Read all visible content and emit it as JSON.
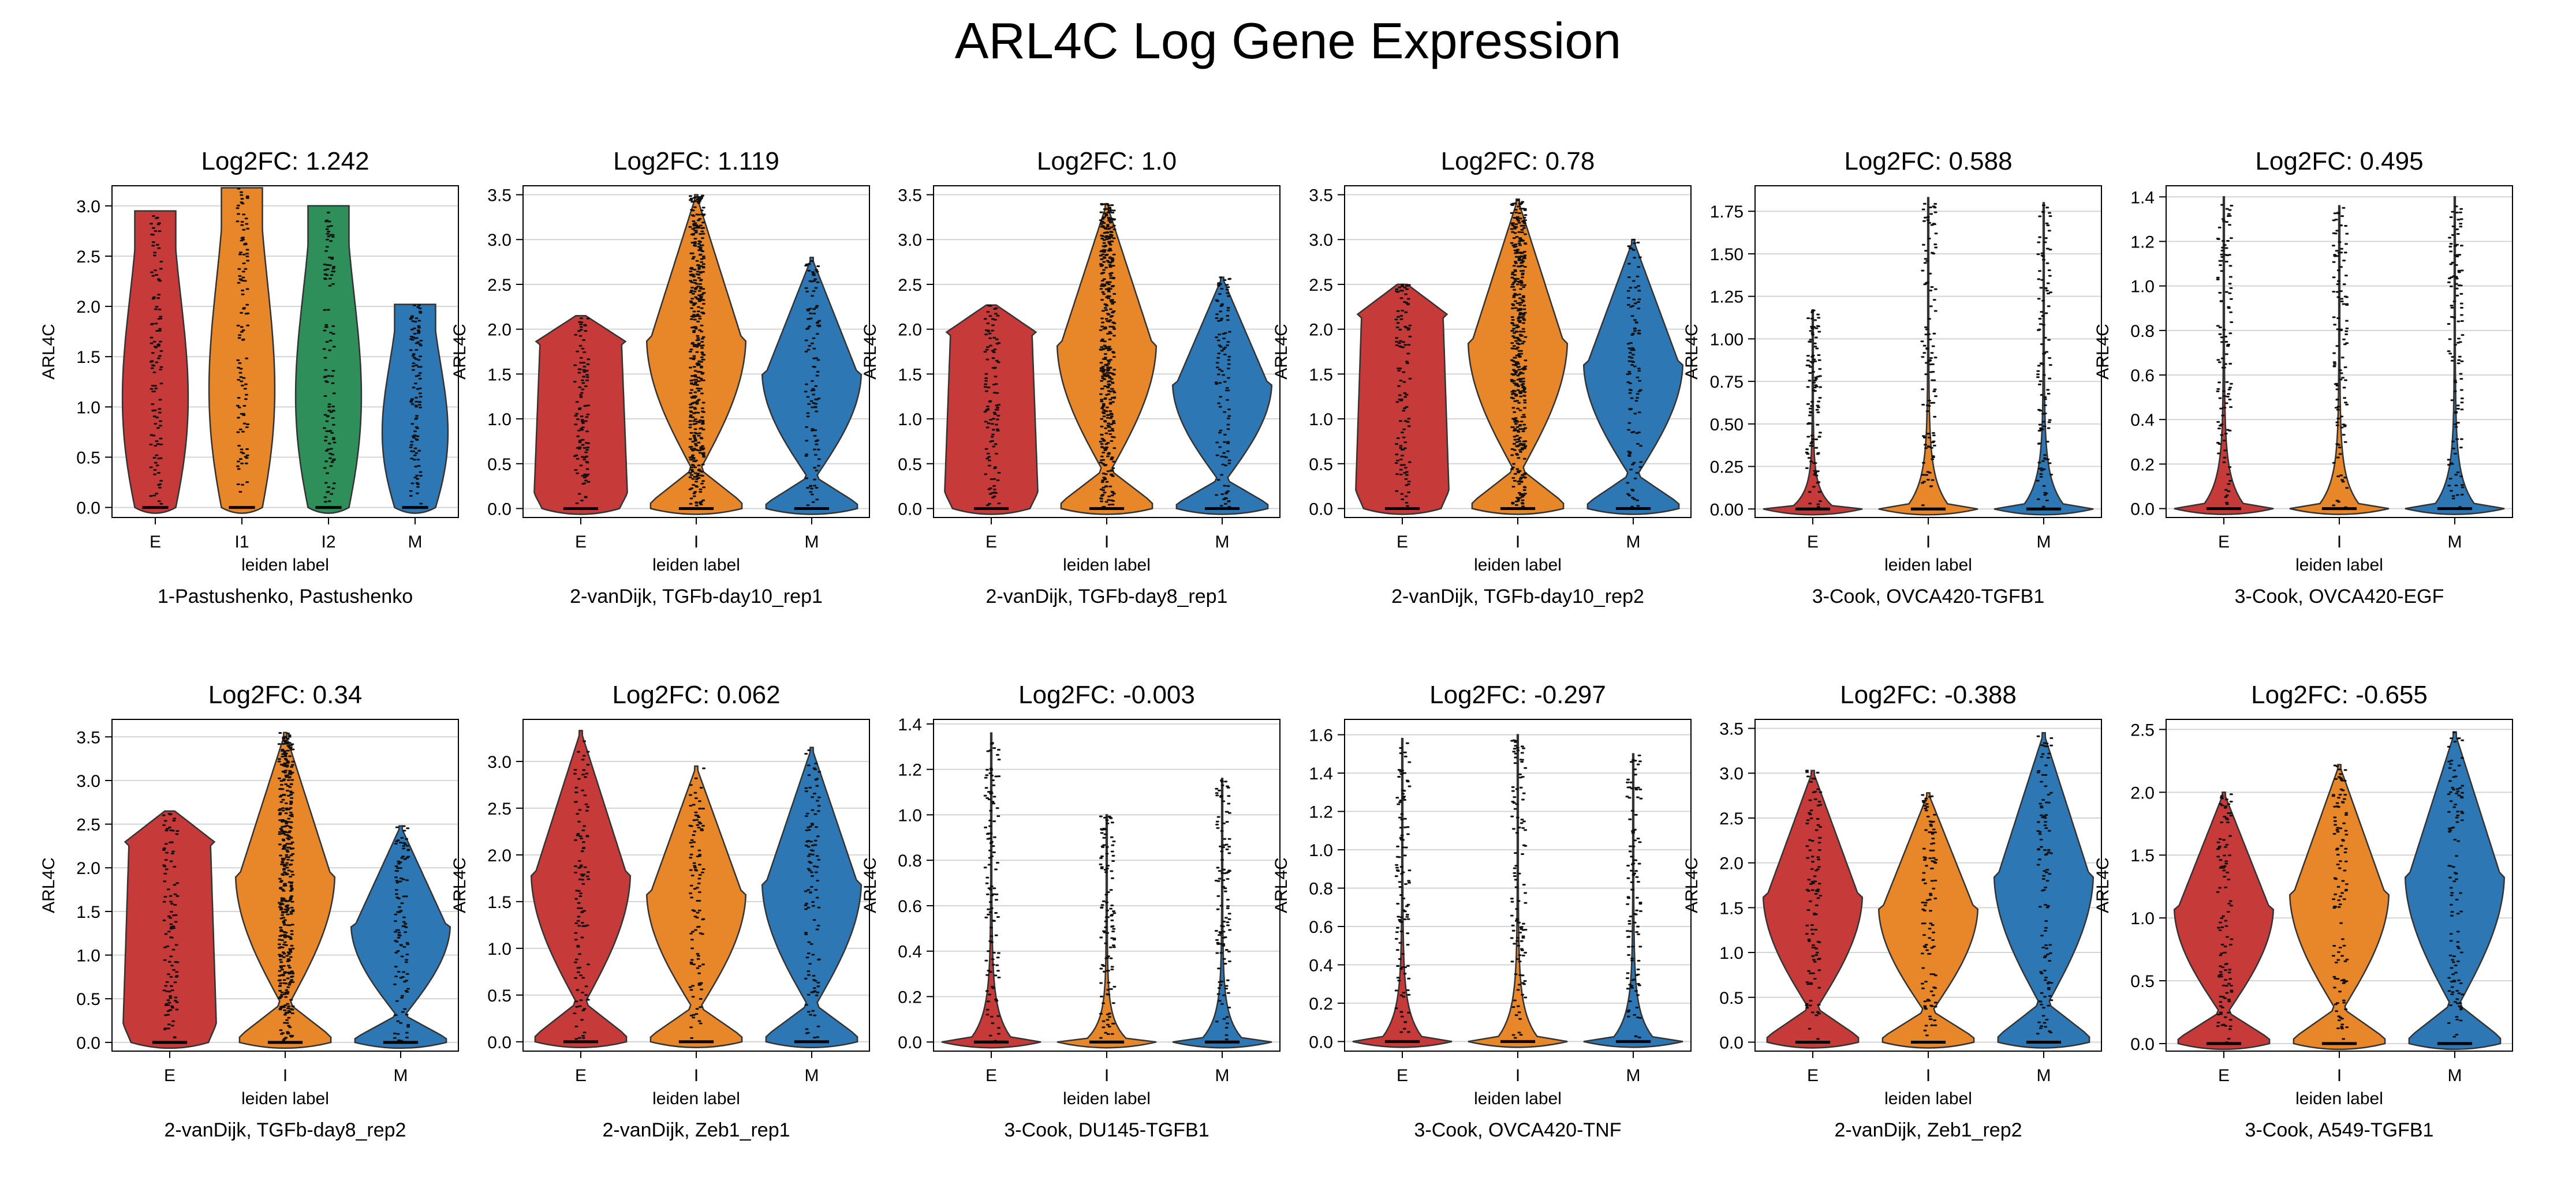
{
  "figure": {
    "title": "ARL4C Log Gene Expression"
  },
  "colors": {
    "E": "#c73a3a",
    "I": "#e8862a",
    "I1": "#e8862a",
    "I2": "#2f8f5b",
    "M": "#2e77b5"
  },
  "chart_data": [
    {
      "type": "violin",
      "title": "Log2FC: 1.242",
      "xlabel": "leiden label",
      "ylabel": "ARL4C",
      "caption": "1-Pastushenko, Pastushenko",
      "categories": [
        "E",
        "I1",
        "I2",
        "M"
      ],
      "yticks": [
        "0.0",
        "0.5",
        "1.0",
        "1.5",
        "2.0",
        "2.5",
        "3.0"
      ],
      "ylim": [
        -0.1,
        3.2
      ],
      "max": [
        2.95,
        3.18,
        3.0,
        2.02
      ],
      "grid": true
    },
    {
      "type": "violin",
      "title": "Log2FC: 1.119",
      "xlabel": "leiden label",
      "ylabel": "ARL4C",
      "caption": "2-vanDijk, TGFb-day10_rep1",
      "categories": [
        "E",
        "I",
        "M"
      ],
      "yticks": [
        "0.0",
        "0.5",
        "1.0",
        "1.5",
        "2.0",
        "2.5",
        "3.0",
        "3.5"
      ],
      "ylim": [
        -0.1,
        3.6
      ],
      "max": [
        2.15,
        3.5,
        2.8
      ],
      "grid": true
    },
    {
      "type": "violin",
      "title": "Log2FC: 1.0",
      "xlabel": "leiden label",
      "ylabel": "ARL4C",
      "caption": "2-vanDijk, TGFb-day8_rep1",
      "categories": [
        "E",
        "I",
        "M"
      ],
      "yticks": [
        "0.0",
        "0.5",
        "1.0",
        "1.5",
        "2.0",
        "2.5",
        "3.0",
        "3.5"
      ],
      "ylim": [
        -0.1,
        3.6
      ],
      "max": [
        2.27,
        3.4,
        2.58
      ],
      "grid": true
    },
    {
      "type": "violin",
      "title": "Log2FC: 0.78",
      "xlabel": "leiden label",
      "ylabel": "ARL4C",
      "caption": "2-vanDijk, TGFb-day10_rep2",
      "categories": [
        "E",
        "I",
        "M"
      ],
      "yticks": [
        "0.0",
        "0.5",
        "1.0",
        "1.5",
        "2.0",
        "2.5",
        "3.0",
        "3.5"
      ],
      "ylim": [
        -0.1,
        3.6
      ],
      "max": [
        2.5,
        3.45,
        3.0
      ],
      "grid": true
    },
    {
      "type": "violin",
      "title": "Log2FC: 0.588",
      "xlabel": "leiden label",
      "ylabel": "ARL4C",
      "caption": "3-Cook, OVCA420-TGFB1",
      "categories": [
        "E",
        "I",
        "M"
      ],
      "yticks": [
        "0.00",
        "0.25",
        "0.50",
        "0.75",
        "1.00",
        "1.25",
        "1.50",
        "1.75"
      ],
      "ylim": [
        -0.05,
        1.9
      ],
      "max": [
        1.17,
        1.83,
        1.8
      ],
      "grid": true
    },
    {
      "type": "violin",
      "title": "Log2FC: 0.495",
      "xlabel": "leiden label",
      "ylabel": "ARL4C",
      "caption": "3-Cook, OVCA420-EGF",
      "categories": [
        "E",
        "I",
        "M"
      ],
      "yticks": [
        "0.0",
        "0.2",
        "0.4",
        "0.6",
        "0.8",
        "1.0",
        "1.2",
        "1.4"
      ],
      "ylim": [
        -0.04,
        1.45
      ],
      "max": [
        1.4,
        1.36,
        1.4
      ],
      "grid": true
    },
    {
      "type": "violin",
      "title": "Log2FC: 0.34",
      "xlabel": "leiden label",
      "ylabel": "ARL4C",
      "caption": "2-vanDijk, TGFb-day8_rep2",
      "categories": [
        "E",
        "I",
        "M"
      ],
      "yticks": [
        "0.0",
        "0.5",
        "1.0",
        "1.5",
        "2.0",
        "2.5",
        "3.0",
        "3.5"
      ],
      "ylim": [
        -0.1,
        3.7
      ],
      "max": [
        2.65,
        3.55,
        2.48
      ],
      "grid": true
    },
    {
      "type": "violin",
      "title": "Log2FC: 0.062",
      "xlabel": "leiden label",
      "ylabel": "ARL4C",
      "caption": "2-vanDijk, Zeb1_rep1",
      "categories": [
        "E",
        "I",
        "M"
      ],
      "yticks": [
        "0.0",
        "0.5",
        "1.0",
        "1.5",
        "2.0",
        "2.5",
        "3.0"
      ],
      "ylim": [
        -0.1,
        3.45
      ],
      "max": [
        3.33,
        2.95,
        3.15
      ],
      "grid": true
    },
    {
      "type": "violin",
      "title": "Log2FC: -0.003",
      "xlabel": "leiden label",
      "ylabel": "ARL4C",
      "caption": "3-Cook, DU145-TGFB1",
      "categories": [
        "E",
        "I",
        "M"
      ],
      "yticks": [
        "0.0",
        "0.2",
        "0.4",
        "0.6",
        "0.8",
        "1.0",
        "1.2",
        "1.4"
      ],
      "ylim": [
        -0.04,
        1.42
      ],
      "max": [
        1.36,
        1.0,
        1.16
      ],
      "grid": true
    },
    {
      "type": "violin",
      "title": "Log2FC: -0.297",
      "xlabel": "leiden label",
      "ylabel": "ARL4C",
      "caption": "3-Cook, OVCA420-TNF",
      "categories": [
        "E",
        "I",
        "M"
      ],
      "yticks": [
        "0.0",
        "0.2",
        "0.4",
        "0.6",
        "0.8",
        "1.0",
        "1.2",
        "1.4",
        "1.6"
      ],
      "ylim": [
        -0.05,
        1.68
      ],
      "max": [
        1.58,
        1.6,
        1.5
      ],
      "grid": true
    },
    {
      "type": "violin",
      "title": "Log2FC: -0.388",
      "xlabel": "leiden label",
      "ylabel": "ARL4C",
      "caption": "2-vanDijk, Zeb1_rep2",
      "categories": [
        "E",
        "I",
        "M"
      ],
      "yticks": [
        "0.0",
        "0.5",
        "1.0",
        "1.5",
        "2.0",
        "2.5",
        "3.0",
        "3.5"
      ],
      "ylim": [
        -0.1,
        3.6
      ],
      "max": [
        3.03,
        2.78,
        3.45
      ],
      "grid": true
    },
    {
      "type": "violin",
      "title": "Log2FC: -0.655",
      "xlabel": "leiden label",
      "ylabel": "ARL4C",
      "caption": "3-Cook, A549-TGFB1",
      "categories": [
        "E",
        "I",
        "M"
      ],
      "yticks": [
        "0.0",
        "0.5",
        "1.0",
        "1.5",
        "2.0",
        "2.5"
      ],
      "ylim": [
        -0.06,
        2.58
      ],
      "max": [
        2.0,
        2.22,
        2.48
      ],
      "grid": true
    }
  ]
}
